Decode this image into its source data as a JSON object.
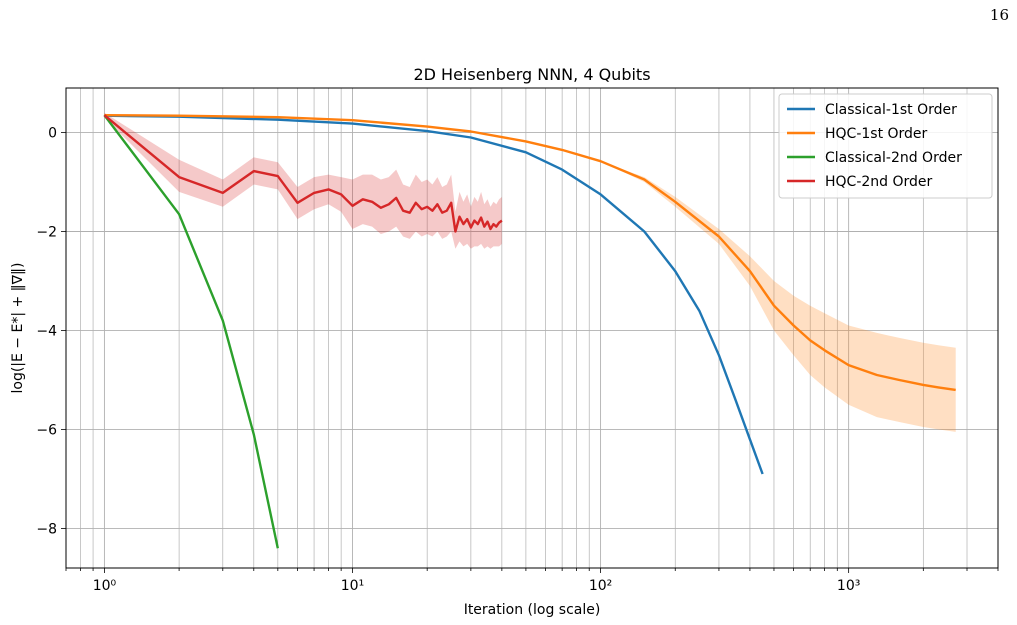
{
  "page_number": "16",
  "chart_data": {
    "type": "line",
    "title": "2D Heisenberg NNN, 4 Qubits",
    "xlabel": "Iteration (log scale)",
    "ylabel": "log(|E − E*| + ‖∇‖)",
    "xscale": "log",
    "xlim": [
      0.7,
      4000
    ],
    "ylim": [
      -8.8,
      0.9
    ],
    "xticks": [
      {
        "value": 1,
        "label": "10⁰"
      },
      {
        "value": 10,
        "label": "10¹"
      },
      {
        "value": 100,
        "label": "10²"
      },
      {
        "value": 1000,
        "label": "10³"
      }
    ],
    "yticks": [
      {
        "value": 0,
        "label": "0"
      },
      {
        "value": -2,
        "label": "−2"
      },
      {
        "value": -4,
        "label": "−4"
      },
      {
        "value": -6,
        "label": "−6"
      },
      {
        "value": -8,
        "label": "−8"
      }
    ],
    "grid": true,
    "legend": "top-right",
    "series": [
      {
        "name": "Classical-1st Order",
        "color": "#1f77b4",
        "x": [
          1,
          2,
          5,
          10,
          20,
          30,
          50,
          70,
          100,
          150,
          200,
          250,
          300,
          350,
          400,
          450
        ],
        "y": [
          0.34,
          0.32,
          0.26,
          0.18,
          0.03,
          -0.1,
          -0.4,
          -0.75,
          -1.25,
          -2.0,
          -2.8,
          -3.6,
          -4.5,
          -5.4,
          -6.2,
          -6.9
        ]
      },
      {
        "name": "HQC-1st Order",
        "color": "#ff7f0e",
        "x": [
          1,
          2,
          5,
          10,
          20,
          30,
          50,
          70,
          100,
          150,
          200,
          300,
          400,
          500,
          600,
          700,
          800,
          1000,
          1300,
          1600,
          2000,
          2300,
          2700
        ],
        "y": [
          0.35,
          0.34,
          0.31,
          0.25,
          0.12,
          0.02,
          -0.18,
          -0.35,
          -0.58,
          -0.95,
          -1.4,
          -2.1,
          -2.8,
          -3.5,
          -3.9,
          -4.2,
          -4.4,
          -4.7,
          -4.9,
          -5.0,
          -5.1,
          -5.15,
          -5.2
        ],
        "band_half_width": [
          0,
          0,
          0,
          0,
          0,
          0,
          0,
          0,
          0,
          0.05,
          0.1,
          0.15,
          0.3,
          0.5,
          0.6,
          0.7,
          0.75,
          0.8,
          0.85,
          0.85,
          0.85,
          0.85,
          0.85
        ]
      },
      {
        "name": "Classical-2nd Order",
        "color": "#2ca02c",
        "x": [
          1,
          2,
          3,
          4,
          5
        ],
        "y": [
          0.35,
          -1.65,
          -3.8,
          -6.1,
          -8.4
        ]
      },
      {
        "name": "HQC-2nd Order",
        "color": "#d62728",
        "x": [
          1,
          2,
          3,
          4,
          5,
          6,
          7,
          8,
          9,
          10,
          11,
          12,
          13,
          14,
          15,
          16,
          17,
          18,
          19,
          20,
          21,
          22,
          23,
          24,
          25,
          26,
          27,
          28,
          29,
          30,
          31,
          32,
          33,
          34,
          35,
          36,
          37,
          38,
          39,
          40
        ],
        "y": [
          0.35,
          -0.9,
          -1.22,
          -0.78,
          -0.88,
          -1.42,
          -1.22,
          -1.15,
          -1.25,
          -1.48,
          -1.35,
          -1.4,
          -1.52,
          -1.45,
          -1.32,
          -1.58,
          -1.62,
          -1.42,
          -1.55,
          -1.5,
          -1.58,
          -1.45,
          -1.62,
          -1.58,
          -1.42,
          -2.0,
          -1.7,
          -1.85,
          -1.75,
          -1.92,
          -1.78,
          -1.85,
          -1.72,
          -1.9,
          -1.8,
          -1.95,
          -1.85,
          -1.9,
          -1.82,
          -1.78
        ],
        "y_low": [
          0.3,
          -1.2,
          -1.5,
          -1.05,
          -1.15,
          -1.75,
          -1.55,
          -1.45,
          -1.6,
          -1.95,
          -1.85,
          -1.9,
          -2.05,
          -2.0,
          -1.9,
          -2.1,
          -2.15,
          -2.0,
          -2.1,
          -2.05,
          -2.1,
          -2.0,
          -2.15,
          -2.1,
          -2.0,
          -2.35,
          -2.2,
          -2.3,
          -2.25,
          -2.35,
          -2.3,
          -2.3,
          -2.25,
          -2.35,
          -2.3,
          -2.35,
          -2.3,
          -2.3,
          -2.3,
          -2.25
        ],
        "y_high": [
          0.4,
          -0.55,
          -0.95,
          -0.5,
          -0.6,
          -1.1,
          -0.9,
          -0.85,
          -0.9,
          -0.95,
          -0.85,
          -0.85,
          -0.95,
          -0.9,
          -0.75,
          -1.05,
          -1.1,
          -0.85,
          -1.0,
          -0.95,
          -1.05,
          -0.9,
          -1.1,
          -1.05,
          -0.85,
          -1.6,
          -1.2,
          -1.4,
          -1.25,
          -1.5,
          -1.3,
          -1.4,
          -1.2,
          -1.45,
          -1.35,
          -1.5,
          -1.4,
          -1.45,
          -1.35,
          -1.3
        ]
      }
    ]
  }
}
